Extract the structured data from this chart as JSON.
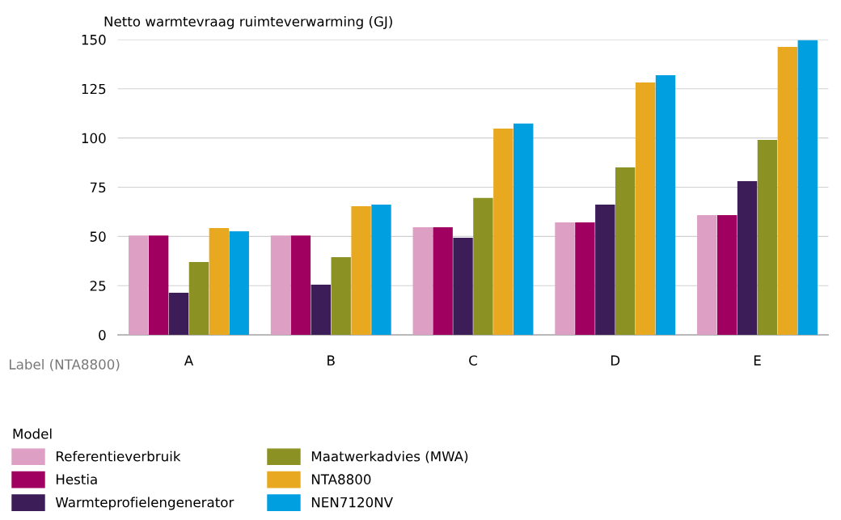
{
  "chart_data": {
    "type": "bar",
    "ylabel": "Netto warmtevraag ruimteverwarming (GJ)",
    "xlabel": "Label (NTA8800)",
    "legend_title": "Model",
    "categories": [
      "A",
      "B",
      "C",
      "D",
      "E"
    ],
    "series": [
      {
        "name": "Referentieverbruik",
        "color": "#dd9fc4",
        "values": [
          50.5,
          50.5,
          54.7,
          57.1,
          60.8
        ]
      },
      {
        "name": "Hestia",
        "color": "#a0005f",
        "values": [
          50.5,
          50.5,
          54.7,
          57.1,
          60.8
        ]
      },
      {
        "name": "Warmteprofielengenerator",
        "color": "#3d1d58",
        "values": [
          21.4,
          25.5,
          49.3,
          66.2,
          78.1
        ]
      },
      {
        "name": "Maatwerkadvies (MWA)",
        "color": "#8c9123",
        "values": [
          37,
          39.5,
          69.5,
          85.1,
          99
        ]
      },
      {
        "name": "NTA8800",
        "color": "#e8a921",
        "values": [
          54.3,
          65.3,
          104.8,
          128.2,
          146.3
        ]
      },
      {
        "name": "NEN7120NV",
        "color": "#009fe0",
        "values": [
          52.6,
          66.2,
          107.3,
          131.9,
          149.6
        ]
      }
    ],
    "ylim": [
      0,
      150
    ],
    "yticks": [
      0,
      25,
      50,
      75,
      100,
      125,
      150
    ],
    "grid": "y",
    "legend": "bottom left"
  }
}
